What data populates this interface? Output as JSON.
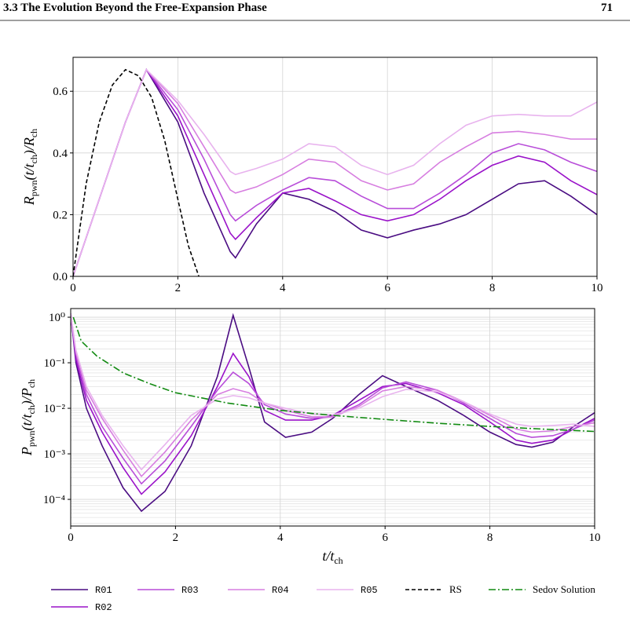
{
  "header": {
    "section": "3.3 The Evolution Beyond the Free-Expansion Phase",
    "page": "71"
  },
  "chart_data": [
    {
      "type": "line",
      "ylabel": [
        "R",
        "pwn",
        "(t/t",
        "ch",
        ")/R",
        "ch"
      ],
      "x": [
        0,
        0.5,
        1,
        1.4,
        2,
        2.5,
        3,
        3.1,
        3.5,
        4,
        4.5,
        5,
        5.5,
        6,
        6.5,
        7,
        7.5,
        8,
        8.5,
        9,
        9.5,
        10
      ],
      "xlim": [
        0,
        10
      ],
      "xticks": [
        0,
        2,
        4,
        6,
        8,
        10
      ],
      "ylim": [
        0,
        0.71
      ],
      "yticks": [
        {
          "value": 0,
          "label": "0.0"
        },
        0.2,
        0.4,
        0.6
      ],
      "grid": true,
      "series": [
        {
          "name": "R01",
          "color": "#4a0c82",
          "values": [
            0,
            0.25,
            0.5,
            0.67,
            0.5,
            0.27,
            0.08,
            0.06,
            0.17,
            0.27,
            0.25,
            0.21,
            0.15,
            0.125,
            0.15,
            0.17,
            0.2,
            0.25,
            0.3,
            0.31,
            0.26,
            0.2
          ]
        },
        {
          "name": "R02",
          "color": "#9a12c9",
          "values": [
            0,
            0.25,
            0.5,
            0.67,
            0.52,
            0.33,
            0.14,
            0.12,
            0.19,
            0.27,
            0.285,
            0.245,
            0.2,
            0.18,
            0.2,
            0.25,
            0.31,
            0.36,
            0.39,
            0.37,
            0.31,
            0.265
          ]
        },
        {
          "name": "R03",
          "color": "#b84dd9",
          "values": [
            0,
            0.25,
            0.5,
            0.67,
            0.54,
            0.38,
            0.2,
            0.18,
            0.23,
            0.28,
            0.32,
            0.31,
            0.26,
            0.22,
            0.22,
            0.27,
            0.33,
            0.4,
            0.43,
            0.41,
            0.37,
            0.34
          ]
        },
        {
          "name": "R04",
          "color": "#d77ee0",
          "values": [
            0,
            0.25,
            0.5,
            0.67,
            0.56,
            0.42,
            0.28,
            0.27,
            0.29,
            0.33,
            0.38,
            0.37,
            0.31,
            0.28,
            0.3,
            0.37,
            0.42,
            0.465,
            0.47,
            0.46,
            0.445,
            0.445
          ]
        },
        {
          "name": "R05",
          "color": "#e8b3ee",
          "values": [
            0,
            0.25,
            0.5,
            0.67,
            0.57,
            0.46,
            0.34,
            0.33,
            0.35,
            0.38,
            0.43,
            0.42,
            0.36,
            0.33,
            0.36,
            0.43,
            0.49,
            0.52,
            0.525,
            0.52,
            0.52,
            0.565
          ]
        },
        {
          "name": "RS",
          "color": "#000000",
          "dash": "dashed",
          "x": [
            0,
            0.25,
            0.5,
            0.75,
            1,
            1.25,
            1.5,
            1.75,
            2,
            2.2,
            2.4
          ],
          "values": [
            0,
            0.3,
            0.5,
            0.62,
            0.67,
            0.65,
            0.58,
            0.44,
            0.25,
            0.1,
            0
          ]
        }
      ]
    },
    {
      "type": "line",
      "xlabel": [
        "t/t",
        "ch"
      ],
      "ylabel": [
        "P",
        "pwn",
        "(t/t",
        "ch",
        ")/P",
        "ch"
      ],
      "x": [
        0,
        0.1,
        0.3,
        0.6,
        1,
        1.35,
        1.8,
        2.3,
        2.8,
        3.1,
        3.4,
        3.7,
        4.1,
        4.6,
        5,
        5.5,
        5.95,
        6.4,
        7,
        7.5,
        8,
        8.5,
        8.8,
        9.2,
        9.6,
        10
      ],
      "xlim": [
        0,
        10
      ],
      "xticks": [
        0,
        2,
        4,
        6,
        8,
        10
      ],
      "ylim": [
        2.6e-05,
        1.55
      ],
      "ylog": true,
      "minor_grid": true,
      "yticks": [
        {
          "value": 0.0001,
          "label": "10⁻⁴"
        },
        {
          "value": 0.001,
          "label": "10⁻³"
        },
        {
          "value": 0.01,
          "label": "10⁻²"
        },
        {
          "value": 0.1,
          "label": "10⁻¹"
        },
        {
          "value": 1,
          "label": "10⁰"
        }
      ],
      "grid": true,
      "series": [
        {
          "name": "R01",
          "color": "#4a0c82",
          "values": [
            1.2,
            0.1,
            0.01,
            0.0015,
            0.00018,
            5.5e-05,
            0.00015,
            0.0015,
            0.05,
            1.1,
            0.08,
            0.005,
            0.0023,
            0.003,
            0.006,
            0.02,
            0.052,
            0.03,
            0.015,
            0.007,
            0.003,
            0.0016,
            0.0014,
            0.0018,
            0.004,
            0.008
          ]
        },
        {
          "name": "R02",
          "color": "#9a12c9",
          "values": [
            1.2,
            0.12,
            0.015,
            0.003,
            0.0005,
            0.00013,
            0.0004,
            0.0025,
            0.03,
            0.16,
            0.05,
            0.009,
            0.0055,
            0.0055,
            0.007,
            0.015,
            0.03,
            0.035,
            0.022,
            0.012,
            0.005,
            0.002,
            0.0017,
            0.002,
            0.0035,
            0.006
          ]
        },
        {
          "name": "R03",
          "color": "#b84dd9",
          "values": [
            1.2,
            0.15,
            0.02,
            0.004,
            0.0008,
            0.00022,
            0.0007,
            0.004,
            0.025,
            0.062,
            0.035,
            0.012,
            0.0075,
            0.006,
            0.0065,
            0.012,
            0.028,
            0.038,
            0.025,
            0.013,
            0.006,
            0.0028,
            0.0023,
            0.0025,
            0.0035,
            0.0055
          ]
        },
        {
          "name": "R04",
          "color": "#d77ee0",
          "values": [
            1.2,
            0.17,
            0.025,
            0.006,
            0.0012,
            0.00032,
            0.0011,
            0.0055,
            0.02,
            0.027,
            0.022,
            0.013,
            0.009,
            0.0065,
            0.0065,
            0.011,
            0.024,
            0.03,
            0.025,
            0.014,
            0.007,
            0.0035,
            0.003,
            0.0032,
            0.004,
            0.0048
          ]
        },
        {
          "name": "R05",
          "color": "#e8b3ee",
          "values": [
            1.2,
            0.19,
            0.03,
            0.007,
            0.0015,
            0.00045,
            0.0016,
            0.007,
            0.016,
            0.019,
            0.017,
            0.013,
            0.01,
            0.0075,
            0.0072,
            0.01,
            0.018,
            0.026,
            0.023,
            0.014,
            0.0075,
            0.0045,
            0.004,
            0.0042,
            0.0045,
            0.004
          ]
        },
        {
          "name": "Sedov Solution",
          "color": "#118a11",
          "dash": "dashdot",
          "x": [
            0.05,
            0.2,
            0.5,
            1,
            1.5,
            2,
            3,
            4,
            5,
            6,
            7,
            8,
            9,
            10
          ],
          "values": [
            1.0,
            0.3,
            0.14,
            0.06,
            0.035,
            0.022,
            0.013,
            0.009,
            0.007,
            0.0057,
            0.0047,
            0.004,
            0.0035,
            0.0031
          ]
        }
      ]
    }
  ]
}
